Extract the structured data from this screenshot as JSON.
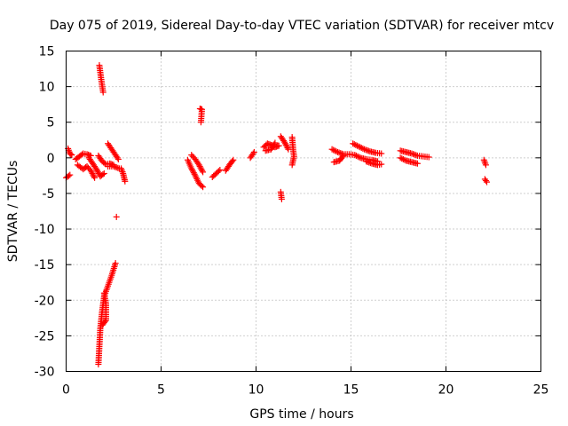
{
  "chart_data": {
    "type": "scatter",
    "title": "Day 075 of 2019, Sidereal Day-to-day VTEC variation (SDTVAR) for receiver mtcv",
    "xlabel": "GPS time / hours",
    "ylabel": "SDTVAR / TECUs",
    "xlim": [
      0,
      25
    ],
    "ylim": [
      -30,
      15
    ],
    "xticks": [
      0,
      5,
      10,
      15,
      20,
      25
    ],
    "yticks": [
      -30,
      -25,
      -20,
      -15,
      -10,
      -5,
      0,
      5,
      10,
      15
    ],
    "grid": true,
    "marker": "plus",
    "color": "#ff0000",
    "series": [
      {
        "name": "SDTVAR",
        "segments": [
          [
            [
              0.0,
              -2.8
            ],
            [
              0.2,
              -2.4
            ]
          ],
          [
            [
              0.1,
              1.3
            ],
            [
              0.2,
              0.6
            ],
            [
              0.3,
              0.4
            ]
          ],
          [
            [
              0.5,
              -0.2
            ],
            [
              0.7,
              0.2
            ],
            [
              0.9,
              0.6
            ],
            [
              1.1,
              0.5
            ],
            [
              1.3,
              0.3
            ]
          ],
          [
            [
              0.6,
              -1.0
            ],
            [
              0.9,
              -1.6
            ],
            [
              1.1,
              -1.2
            ],
            [
              1.3,
              -1.8
            ],
            [
              1.5,
              -2.8
            ]
          ],
          [
            [
              1.2,
              0.0
            ],
            [
              1.4,
              -0.8
            ],
            [
              1.6,
              -1.6
            ],
            [
              1.8,
              -2.6
            ],
            [
              2.0,
              -2.2
            ]
          ],
          [
            [
              1.7,
              0.3
            ],
            [
              1.9,
              -0.5
            ],
            [
              2.1,
              -0.9
            ],
            [
              2.3,
              -0.8
            ],
            [
              2.5,
              -1.0
            ]
          ],
          [
            [
              1.75,
              13.0
            ],
            [
              1.85,
              11.0
            ],
            [
              1.95,
              9.2
            ]
          ],
          [
            [
              2.2,
              2.0
            ],
            [
              2.4,
              1.2
            ],
            [
              2.6,
              0.4
            ],
            [
              2.75,
              -0.2
            ]
          ],
          [
            [
              2.2,
              -1.2
            ],
            [
              2.5,
              -1.2
            ],
            [
              2.8,
              -1.5
            ]
          ],
          [
            [
              2.9,
              -1.5
            ],
            [
              3.0,
              -2.2
            ],
            [
              3.1,
              -3.3
            ]
          ],
          [
            [
              2.65,
              -8.3
            ]
          ],
          [
            [
              1.7,
              -29.0
            ],
            [
              1.75,
              -26.5
            ],
            [
              1.8,
              -24.0
            ],
            [
              1.9,
              -21.5
            ],
            [
              2.0,
              -19.5
            ],
            [
              2.2,
              -18.0
            ],
            [
              2.4,
              -16.5
            ],
            [
              2.6,
              -14.8
            ]
          ],
          [
            [
              1.9,
              -23.5
            ],
            [
              2.1,
              -22.8
            ],
            [
              2.1,
              -20.5
            ],
            [
              2.0,
              -19.0
            ]
          ],
          [
            [
              6.4,
              -0.3
            ],
            [
              6.6,
              -1.5
            ],
            [
              6.8,
              -2.5
            ],
            [
              7.0,
              -3.6
            ],
            [
              7.2,
              -4.1
            ]
          ],
          [
            [
              6.6,
              0.4
            ],
            [
              6.8,
              -0.2
            ],
            [
              7.0,
              -1.0
            ],
            [
              7.2,
              -2.0
            ]
          ],
          [
            [
              7.05,
              6.9
            ],
            [
              7.15,
              6.8
            ],
            [
              7.1,
              5.0
            ]
          ],
          [
            [
              7.7,
              -2.7
            ],
            [
              7.9,
              -2.2
            ],
            [
              8.1,
              -1.7
            ]
          ],
          [
            [
              8.4,
              -1.8
            ],
            [
              8.6,
              -1.0
            ],
            [
              8.8,
              -0.3
            ]
          ],
          [
            [
              9.7,
              0.0
            ],
            [
              9.9,
              0.8
            ]
          ],
          [
            [
              10.4,
              1.5
            ],
            [
              10.6,
              2.0
            ],
            [
              10.8,
              1.8
            ],
            [
              11.0,
              1.5
            ],
            [
              11.2,
              1.7
            ]
          ],
          [
            [
              10.5,
              1.0
            ],
            [
              10.8,
              1.2
            ],
            [
              11.0,
              2.1
            ]
          ],
          [
            [
              11.3,
              3.0
            ],
            [
              11.5,
              2.2
            ],
            [
              11.7,
              1.2
            ]
          ],
          [
            [
              11.3,
              -4.8
            ],
            [
              11.35,
              -5.8
            ]
          ],
          [
            [
              11.9,
              2.9
            ],
            [
              11.95,
              1.2
            ],
            [
              12.0,
              0.2
            ],
            [
              11.9,
              -1.0
            ]
          ],
          [
            [
              14.0,
              1.2
            ],
            [
              14.3,
              0.8
            ],
            [
              14.6,
              0.5
            ],
            [
              14.9,
              0.5
            ],
            [
              15.2,
              0.4
            ],
            [
              15.5,
              0.0
            ],
            [
              15.8,
              -0.2
            ],
            [
              16.1,
              -0.3
            ],
            [
              16.4,
              -0.5
            ]
          ],
          [
            [
              14.1,
              -0.6
            ],
            [
              14.4,
              -0.4
            ],
            [
              14.6,
              0.3
            ]
          ],
          [
            [
              15.1,
              2.0
            ],
            [
              15.4,
              1.6
            ],
            [
              15.7,
              1.2
            ],
            [
              16.0,
              0.9
            ],
            [
              16.3,
              0.7
            ],
            [
              16.6,
              0.6
            ]
          ],
          [
            [
              15.8,
              -0.5
            ],
            [
              16.1,
              -0.8
            ],
            [
              16.4,
              -1.0
            ],
            [
              16.6,
              -0.9
            ]
          ],
          [
            [
              17.6,
              1.0
            ],
            [
              17.9,
              0.8
            ],
            [
              18.2,
              0.6
            ],
            [
              18.5,
              0.3
            ],
            [
              18.8,
              0.2
            ],
            [
              19.1,
              0.1
            ]
          ],
          [
            [
              17.6,
              0.0
            ],
            [
              17.9,
              -0.4
            ],
            [
              18.2,
              -0.6
            ],
            [
              18.5,
              -0.8
            ]
          ],
          [
            [
              22.0,
              -0.3
            ],
            [
              22.1,
              -1.0
            ]
          ],
          [
            [
              22.05,
              -3.0
            ],
            [
              22.15,
              -3.4
            ]
          ]
        ]
      }
    ]
  }
}
